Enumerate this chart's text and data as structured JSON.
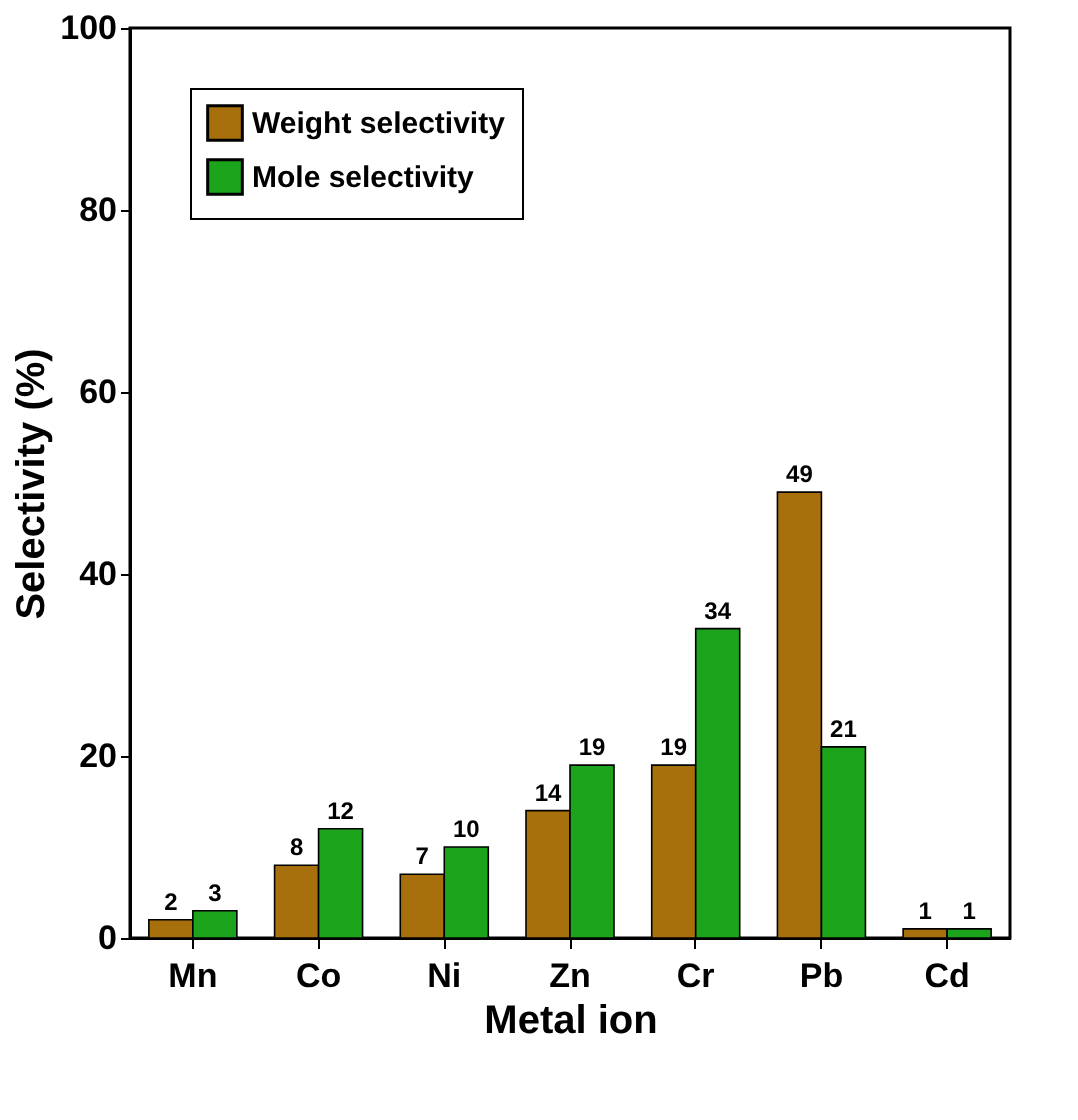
{
  "chart_data": {
    "type": "bar",
    "xlabel": "Metal ion",
    "ylabel": "Selectivity (%)",
    "categories": [
      "Mn",
      "Co",
      "Ni",
      "Zn",
      "Cr",
      "Pb",
      "Cd"
    ],
    "series": [
      {
        "name": "Weight selectivity",
        "color": "#a8700c",
        "values": [
          2,
          8,
          7,
          14,
          19,
          49,
          1
        ]
      },
      {
        "name": "Mole selectivity",
        "color": "#1ca51c",
        "values": [
          3,
          12,
          10,
          19,
          34,
          21,
          1
        ]
      }
    ],
    "ylim": [
      0,
      100
    ],
    "yticks": [
      0,
      20,
      40,
      60,
      80,
      100
    ],
    "data_labels": true,
    "legend": "top left",
    "grid": false
  }
}
